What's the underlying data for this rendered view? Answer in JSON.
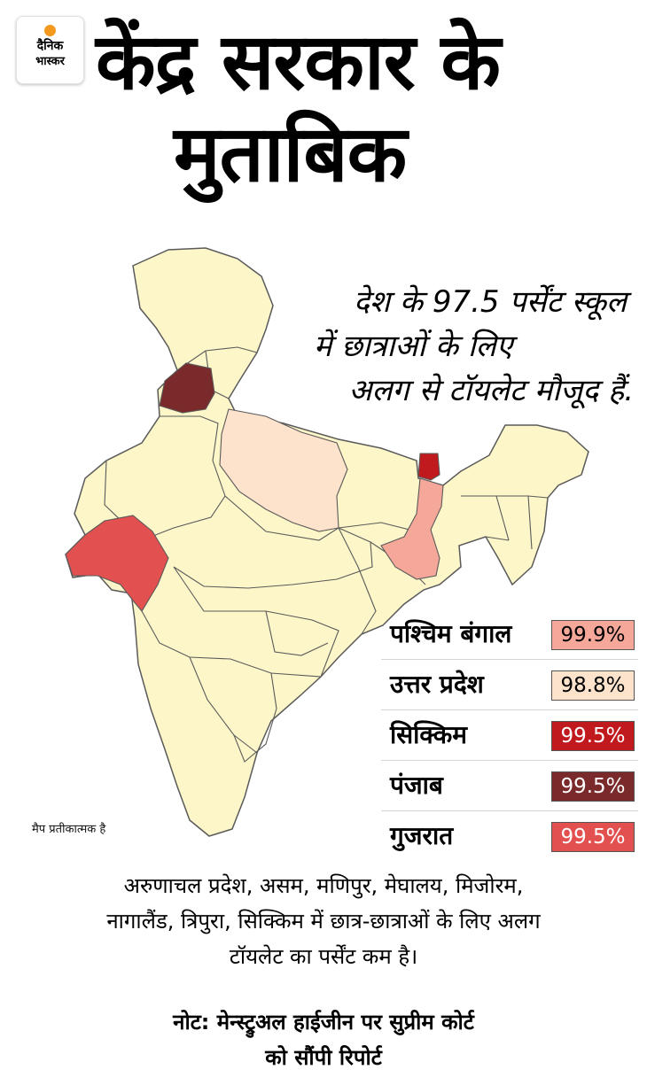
{
  "logo": {
    "line1": "दैनिक",
    "line2": "भास्कर",
    "sun_color": "#f39a1e"
  },
  "title": {
    "line1": "केंद्र सरकार के",
    "line2": "मुताबिक"
  },
  "callout": {
    "line1": "देश के 97.5 पर्सेंट स्कूल",
    "line2": "में छात्राओं के लिए",
    "line3": "अलग से टॉयलेट मौजूद हैं."
  },
  "map": {
    "base_color": "#fcf6c8",
    "border_color": "#5a5a5a",
    "note": "मैप प्रतीकात्मक है",
    "highlighted_regions": [
      {
        "name": "पश्चिम बंगाल",
        "value": "99.9%",
        "color": "#f5a89a"
      },
      {
        "name": "उत्तर प्रदेश",
        "value": "98.8%",
        "color": "#fde3cc"
      },
      {
        "name": "सिक्किम",
        "value": "99.5%",
        "color": "#c0191e"
      },
      {
        "name": "पंजाब",
        "value": "99.5%",
        "color": "#7a2a2a"
      },
      {
        "name": "गुजरात",
        "value": "99.5%",
        "color": "#e25050"
      }
    ]
  },
  "legend": [
    {
      "name": "पश्चिम बंगाल",
      "value": "99.9%",
      "color": "#f5a89a",
      "text_color": "#000000"
    },
    {
      "name": "उत्तर प्रदेश",
      "value": "98.8%",
      "color": "#fde3cc",
      "text_color": "#000000"
    },
    {
      "name": "सिक्किम",
      "value": "99.5%",
      "color": "#c0191e",
      "text_color": "#ffffff"
    },
    {
      "name": "पंजाब",
      "value": "99.5%",
      "color": "#7a2a2a",
      "text_color": "#ffffff"
    },
    {
      "name": "गुजरात",
      "value": "99.5%",
      "color": "#e25050",
      "text_color": "#ffffff"
    }
  ],
  "bottom_text": {
    "line1": "अरुणाचल प्रदेश, असम, मणिपुर, मेघालय, मिजोरम,",
    "line2": "नागालैंड, त्रिपुरा, सिक्किम में छात्र-छात्राओं के लिए अलग",
    "line3": "टॉयलेट का पर्सेंट कम है।"
  },
  "note": {
    "line1": "नोट: मेन्स्ट्रुअल हाईजीन पर सुप्रीम कोर्ट",
    "line2": "को सौंपी रिपोर्ट"
  }
}
